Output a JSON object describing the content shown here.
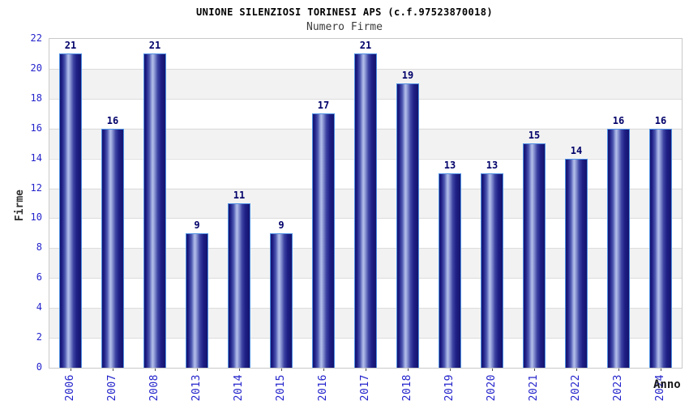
{
  "chart_data": {
    "type": "bar",
    "title": "UNIONE SILENZIOSI TORINESI APS (c.f.97523870018)",
    "subtitle": "Numero Firme",
    "xlabel": "Anno",
    "ylabel": "Firme",
    "categories": [
      "2006",
      "2007",
      "2008",
      "2013",
      "2014",
      "2015",
      "2016",
      "2017",
      "2018",
      "2019",
      "2020",
      "2021",
      "2022",
      "2023",
      "2024"
    ],
    "values": [
      21,
      16,
      21,
      9,
      11,
      9,
      17,
      21,
      19,
      13,
      13,
      15,
      14,
      16,
      16
    ],
    "ylim": [
      0,
      22
    ],
    "ytick_step": 2,
    "grid": true,
    "legend": "none",
    "bands": "alternating horizontal 2-unit stripes white/#f2f2f2",
    "colors": {
      "bar_dark": "#14146e",
      "bar_highlight": "#b4bfe9",
      "bar_border": "#4f91e4",
      "axis_tick_text": "#2424cc",
      "value_label": "#00006a",
      "band_gray": "#f2f2f2",
      "gridline": "#dcdcdc",
      "plot_border": "#c9c9c9",
      "title": "#000000",
      "subtitle": "#3c3c3c",
      "axis_title": "#333333"
    }
  }
}
